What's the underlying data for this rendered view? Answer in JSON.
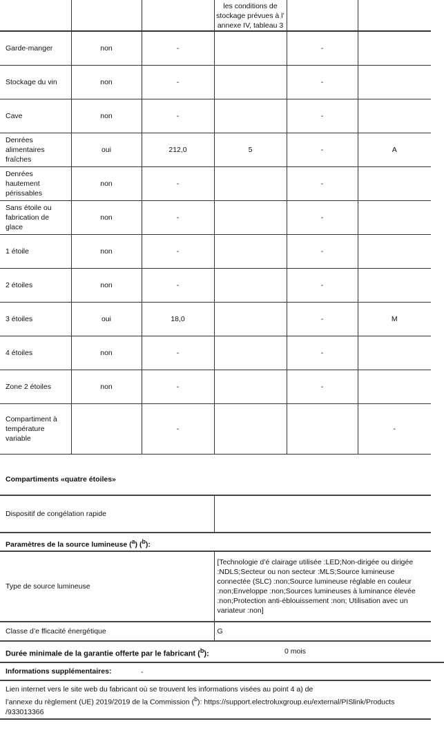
{
  "table": {
    "header_fragment": "les conditions de stockage prévues à l’ annexe IV, tableau 3",
    "rows": [
      {
        "name": "Garde-manger",
        "present": "non",
        "volume": "-",
        "temp": "",
        "c5": "-",
        "c6": ""
      },
      {
        "name": "Stockage du vin",
        "present": "non",
        "volume": "-",
        "temp": "",
        "c5": "-",
        "c6": ""
      },
      {
        "name": "Cave",
        "present": "non",
        "volume": "-",
        "temp": "",
        "c5": "-",
        "c6": ""
      },
      {
        "name": "Denrées alimentaires fraîches",
        "present": "oui",
        "volume": "212,0",
        "temp": "5",
        "c5": "-",
        "c6": "A"
      },
      {
        "name": "Denrées hautement périssables",
        "present": "non",
        "volume": "-",
        "temp": "",
        "c5": "-",
        "c6": ""
      },
      {
        "name": "Sans étoile ou fabrication de glace",
        "present": "non",
        "volume": "-",
        "temp": "",
        "c5": "-",
        "c6": ""
      },
      {
        "name": "1 étoile",
        "present": "non",
        "volume": "-",
        "temp": "",
        "c5": "-",
        "c6": ""
      },
      {
        "name": "2 étoiles",
        "present": "non",
        "volume": "-",
        "temp": "",
        "c5": "-",
        "c6": ""
      },
      {
        "name": "3 étoiles",
        "present": "oui",
        "volume": "18,0",
        "temp": "",
        "c5": "-",
        "c6": "M"
      },
      {
        "name": "4 étoiles",
        "present": "non",
        "volume": "-",
        "temp": "",
        "c5": "-",
        "c6": ""
      },
      {
        "name": "Zone 2 étoiles",
        "present": "non",
        "volume": "-",
        "temp": "",
        "c5": "-",
        "c6": ""
      },
      {
        "name": "Compartiment à température variable",
        "present": "",
        "volume": "-",
        "temp": "",
        "c5": "",
        "c6": "-"
      }
    ]
  },
  "four_star": {
    "title": "Compartiments «quatre étoiles»",
    "label": "Dispositif de congélation rapide",
    "value": ""
  },
  "light": {
    "title": "Paramètres de la source lumineuse (a) (b):",
    "type_label": "Type de source lumineuse",
    "type_value": "[Technologie d’é clairage utilisée :LED;Non-dirigée ou dirigée :NDLS;Secteur ou non secteur :MLS;Source lumineuse connectée (SLC) :non;Source lumineuse réglable en couleur :non;Enveloppe :non;Sources lumineuses à luminance élevée :non;Protection anti-éblouissement :non; Utilisation avec un variateur :non]",
    "class_label": "Classe d’e fficacité énergétique",
    "class_value": "G"
  },
  "warranty": {
    "label": "Durée minimale de la garantie offerte par le fabricant (b):",
    "value": "0 mois"
  },
  "info": {
    "label": "Informations supplémentaires:",
    "value": "-"
  },
  "link": {
    "text": "Lien internet vers le site web du fabricant où se trouvent les informations visées au point 4 a) de l’annexe du règlement (UE) 2019/2019 de la Commission (b): https://support.electroluxgroup.eu/external/PISlink/Products /933013366"
  }
}
